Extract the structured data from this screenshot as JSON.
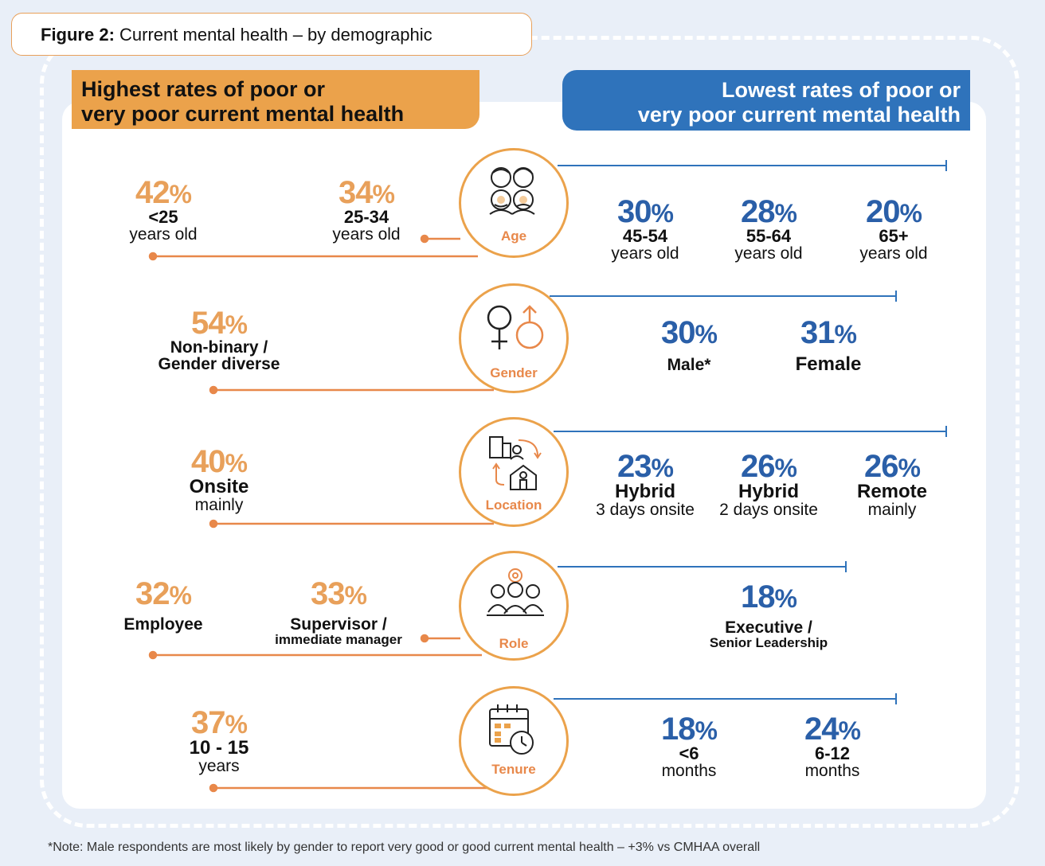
{
  "figure": {
    "label": "Figure 2:",
    "title": "Current mental health – by demographic"
  },
  "headers": {
    "highest_line1": "Highest rates of poor or",
    "highest_line2": "very poor current mental health",
    "lowest_line1": "Lowest rates of poor or",
    "lowest_line2": "very poor current mental health"
  },
  "categories": {
    "age": {
      "label": "Age",
      "highest": [
        {
          "pct": "42",
          "line1": "<25",
          "line2": "years old"
        },
        {
          "pct": "34",
          "line1": "25-34",
          "line2": "years old"
        }
      ],
      "lowest": [
        {
          "pct": "30",
          "line1": "45-54",
          "line2": "years old"
        },
        {
          "pct": "28",
          "line1": "55-64",
          "line2": "years old"
        },
        {
          "pct": "20",
          "line1": "65+",
          "line2": "years old"
        }
      ]
    },
    "gender": {
      "label": "Gender",
      "highest": [
        {
          "pct": "54",
          "line1": "Non-binary /",
          "line2": "Gender diverse"
        }
      ],
      "lowest": [
        {
          "pct": "30",
          "line1": "Male*"
        },
        {
          "pct": "31",
          "line1": "Female"
        }
      ]
    },
    "location": {
      "label": "Location",
      "highest": [
        {
          "pct": "40",
          "line1": "Onsite",
          "line2": "mainly"
        }
      ],
      "lowest": [
        {
          "pct": "23",
          "line1": "Hybrid",
          "line2": "3 days onsite"
        },
        {
          "pct": "26",
          "line1": "Hybrid",
          "line2": "2 days onsite"
        },
        {
          "pct": "26",
          "line1": "Remote",
          "line2": "mainly"
        }
      ]
    },
    "role": {
      "label": "Role",
      "highest": [
        {
          "pct": "32",
          "line1": "Employee"
        },
        {
          "pct": "33",
          "line1": "Supervisor /",
          "line2": "immediate manager"
        }
      ],
      "lowest": [
        {
          "pct": "18",
          "line1": "Executive /",
          "line2": "Senior Leadership"
        }
      ]
    },
    "tenure": {
      "label": "Tenure",
      "highest": [
        {
          "pct": "37",
          "line1": "10 - 15",
          "line2": "years"
        }
      ],
      "lowest": [
        {
          "pct": "18",
          "line1": "<6",
          "line2": "months"
        },
        {
          "pct": "24",
          "line1": "6-12",
          "line2": "months"
        }
      ]
    }
  },
  "pct_symbol": "%",
  "note": "*Note: Male respondents are most likely by gender to report very good or good current mental health – +3% vs CMHAA overall",
  "colors": {
    "orange": "#eba24b",
    "orange_line": "#e8884a",
    "blue": "#2a5fa8",
    "blue_header": "#2f73bb",
    "background": "#e9eff8"
  },
  "icons": [
    "people-age-icon",
    "gender-symbols-icon",
    "office-home-commute-icon",
    "team-gear-icon",
    "calendar-clock-icon"
  ]
}
